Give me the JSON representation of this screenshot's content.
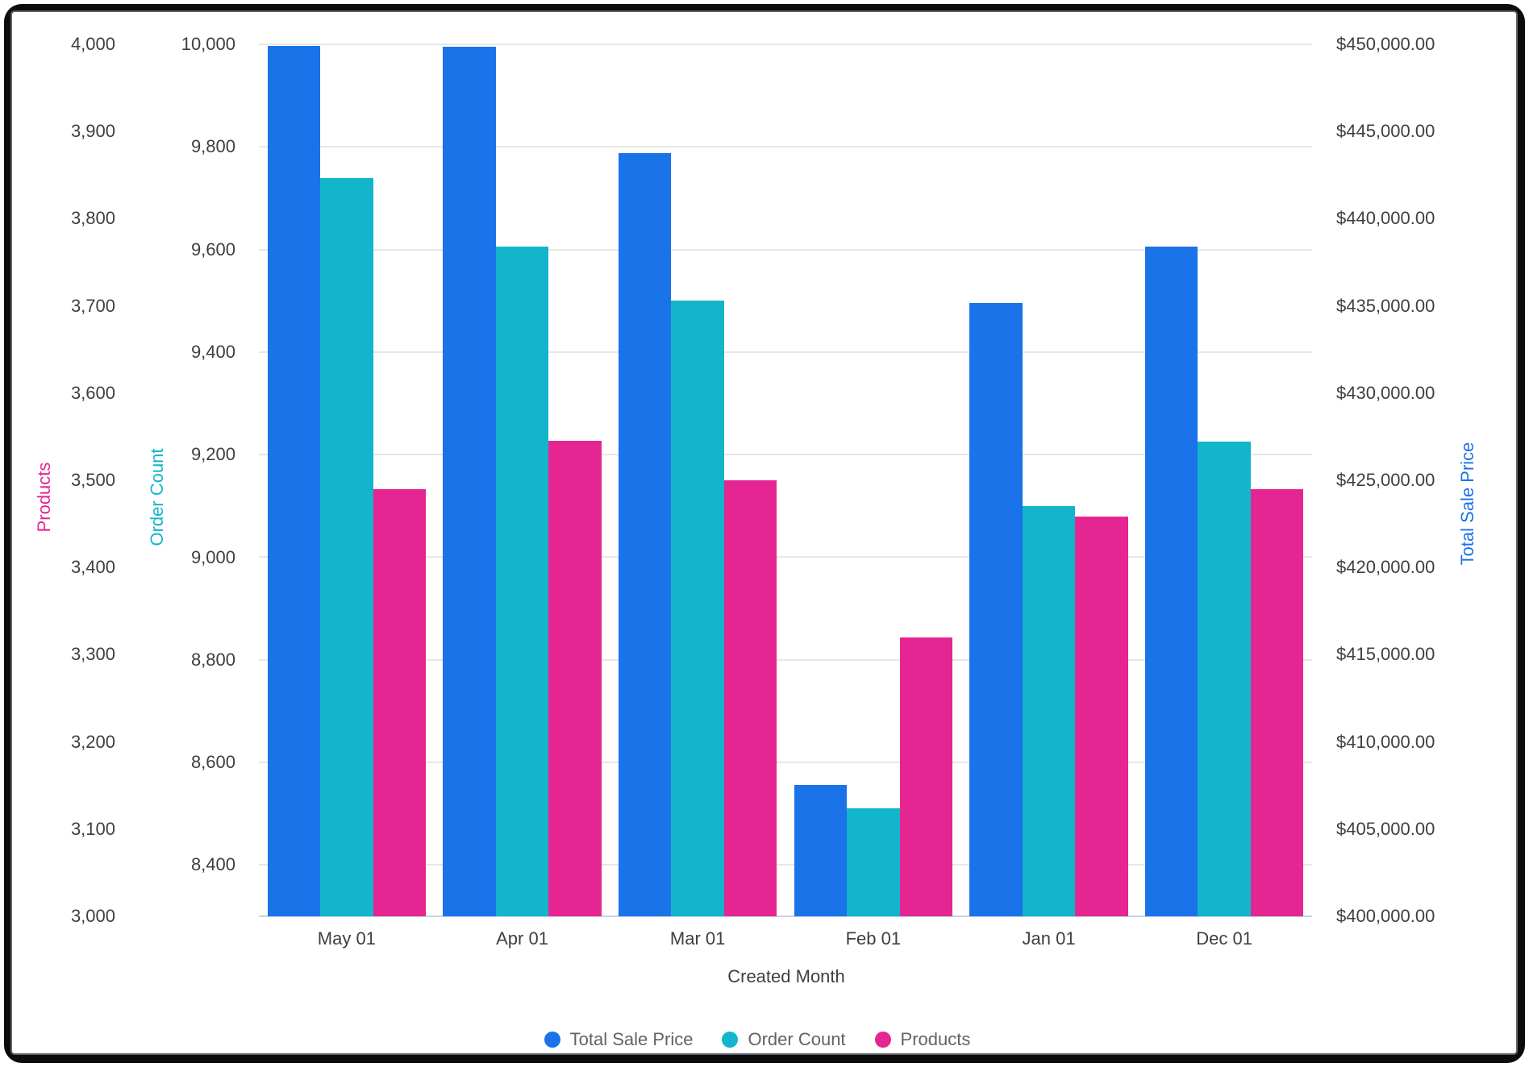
{
  "window": {
    "frame_color": "#0a0c0d",
    "canvas_color": "#ffffff"
  },
  "chart_data": {
    "type": "bar",
    "title": "",
    "x_axis_title": "Created Month",
    "categories": [
      "May 01",
      "Apr 01",
      "Mar 01",
      "Feb 01",
      "Jan 01",
      "Dec 01"
    ],
    "series": [
      {
        "name": "Total Sale Price",
        "color": "#1A73E8",
        "axis": "price",
        "values": [
          449900,
          449850,
          443750,
          407550,
          435150,
          438400
        ]
      },
      {
        "name": "Order Count",
        "color": "#12B5CB",
        "axis": "orders",
        "values": [
          9740,
          9605,
          9500,
          8510,
          9100,
          9225
        ]
      },
      {
        "name": "Products",
        "color": "#E52592",
        "axis": "products",
        "values": [
          3490,
          3545,
          3500,
          3320,
          3458,
          3490
        ]
      }
    ],
    "axes": {
      "products": {
        "title": "Products",
        "color": "#E52592",
        "side": "left-outer",
        "min": 3000,
        "max": 4000,
        "ticks": [
          {
            "value": 3000,
            "label": "3,000"
          },
          {
            "value": 3100,
            "label": "3,100"
          },
          {
            "value": 3200,
            "label": "3,200"
          },
          {
            "value": 3300,
            "label": "3,300"
          },
          {
            "value": 3400,
            "label": "3,400"
          },
          {
            "value": 3500,
            "label": "3,500"
          },
          {
            "value": 3600,
            "label": "3,600"
          },
          {
            "value": 3700,
            "label": "3,700"
          },
          {
            "value": 3800,
            "label": "3,800"
          },
          {
            "value": 3900,
            "label": "3,900"
          },
          {
            "value": 4000,
            "label": "4,000"
          }
        ]
      },
      "orders": {
        "title": "Order Count",
        "color": "#12B5CB",
        "side": "left-inner",
        "min": 8300,
        "max": 10000,
        "gridlines": true,
        "ticks": [
          {
            "value": 8400,
            "label": "8,400"
          },
          {
            "value": 8600,
            "label": "8,600"
          },
          {
            "value": 8800,
            "label": "8,800"
          },
          {
            "value": 9000,
            "label": "9,000"
          },
          {
            "value": 9200,
            "label": "9,200"
          },
          {
            "value": 9400,
            "label": "9,400"
          },
          {
            "value": 9600,
            "label": "9,600"
          },
          {
            "value": 9800,
            "label": "9,800"
          },
          {
            "value": 10000,
            "label": "10,000"
          }
        ]
      },
      "price": {
        "title": "Total Sale Price",
        "color": "#1A73E8",
        "side": "right",
        "min": 400000,
        "max": 450000,
        "ticks": [
          {
            "value": 400000,
            "label": "$400,000.00"
          },
          {
            "value": 405000,
            "label": "$405,000.00"
          },
          {
            "value": 410000,
            "label": "$410,000.00"
          },
          {
            "value": 415000,
            "label": "$415,000.00"
          },
          {
            "value": 420000,
            "label": "$420,000.00"
          },
          {
            "value": 425000,
            "label": "$425,000.00"
          },
          {
            "value": 430000,
            "label": "$430,000.00"
          },
          {
            "value": 435000,
            "label": "$435,000.00"
          },
          {
            "value": 440000,
            "label": "$440,000.00"
          },
          {
            "value": 445000,
            "label": "$445,000.00"
          },
          {
            "value": 450000,
            "label": "$450,000.00"
          }
        ]
      }
    },
    "legend": {
      "position": "bottom",
      "items": [
        {
          "label": "Total Sale Price",
          "color": "#1A73E8"
        },
        {
          "label": "Order Count",
          "color": "#12B5CB"
        },
        {
          "label": "Products",
          "color": "#E52592"
        }
      ]
    },
    "layout_hints": {
      "grid": "horizontal, Order Count ticks only",
      "bar_grouping": "3 bars per category, no gap within group"
    }
  }
}
